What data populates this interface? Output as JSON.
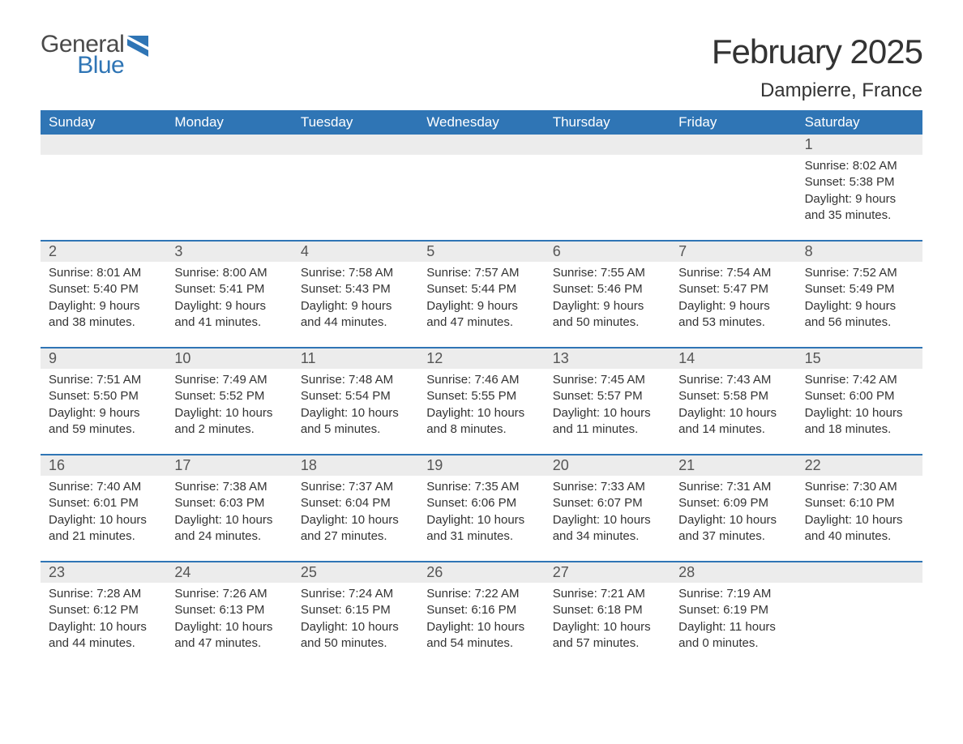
{
  "logo": {
    "text1": "General",
    "text2": "Blue",
    "text_color": "#4a4a4a",
    "blue_color": "#2f75b5"
  },
  "header": {
    "month_title": "February 2025",
    "location": "Dampierre, France"
  },
  "colors": {
    "header_bg": "#2f75b5",
    "header_text": "#ffffff",
    "daynum_bg": "#ececec",
    "text": "#333333",
    "border": "#2f75b5",
    "background": "#ffffff"
  },
  "calendar": {
    "days_of_week": [
      "Sunday",
      "Monday",
      "Tuesday",
      "Wednesday",
      "Thursday",
      "Friday",
      "Saturday"
    ],
    "weeks": [
      [
        {
          "n": "",
          "sunrise": "",
          "sunset": "",
          "daylight1": "",
          "daylight2": ""
        },
        {
          "n": "",
          "sunrise": "",
          "sunset": "",
          "daylight1": "",
          "daylight2": ""
        },
        {
          "n": "",
          "sunrise": "",
          "sunset": "",
          "daylight1": "",
          "daylight2": ""
        },
        {
          "n": "",
          "sunrise": "",
          "sunset": "",
          "daylight1": "",
          "daylight2": ""
        },
        {
          "n": "",
          "sunrise": "",
          "sunset": "",
          "daylight1": "",
          "daylight2": ""
        },
        {
          "n": "",
          "sunrise": "",
          "sunset": "",
          "daylight1": "",
          "daylight2": ""
        },
        {
          "n": "1",
          "sunrise": "Sunrise: 8:02 AM",
          "sunset": "Sunset: 5:38 PM",
          "daylight1": "Daylight: 9 hours",
          "daylight2": "and 35 minutes."
        }
      ],
      [
        {
          "n": "2",
          "sunrise": "Sunrise: 8:01 AM",
          "sunset": "Sunset: 5:40 PM",
          "daylight1": "Daylight: 9 hours",
          "daylight2": "and 38 minutes."
        },
        {
          "n": "3",
          "sunrise": "Sunrise: 8:00 AM",
          "sunset": "Sunset: 5:41 PM",
          "daylight1": "Daylight: 9 hours",
          "daylight2": "and 41 minutes."
        },
        {
          "n": "4",
          "sunrise": "Sunrise: 7:58 AM",
          "sunset": "Sunset: 5:43 PM",
          "daylight1": "Daylight: 9 hours",
          "daylight2": "and 44 minutes."
        },
        {
          "n": "5",
          "sunrise": "Sunrise: 7:57 AM",
          "sunset": "Sunset: 5:44 PM",
          "daylight1": "Daylight: 9 hours",
          "daylight2": "and 47 minutes."
        },
        {
          "n": "6",
          "sunrise": "Sunrise: 7:55 AM",
          "sunset": "Sunset: 5:46 PM",
          "daylight1": "Daylight: 9 hours",
          "daylight2": "and 50 minutes."
        },
        {
          "n": "7",
          "sunrise": "Sunrise: 7:54 AM",
          "sunset": "Sunset: 5:47 PM",
          "daylight1": "Daylight: 9 hours",
          "daylight2": "and 53 minutes."
        },
        {
          "n": "8",
          "sunrise": "Sunrise: 7:52 AM",
          "sunset": "Sunset: 5:49 PM",
          "daylight1": "Daylight: 9 hours",
          "daylight2": "and 56 minutes."
        }
      ],
      [
        {
          "n": "9",
          "sunrise": "Sunrise: 7:51 AM",
          "sunset": "Sunset: 5:50 PM",
          "daylight1": "Daylight: 9 hours",
          "daylight2": "and 59 minutes."
        },
        {
          "n": "10",
          "sunrise": "Sunrise: 7:49 AM",
          "sunset": "Sunset: 5:52 PM",
          "daylight1": "Daylight: 10 hours",
          "daylight2": "and 2 minutes."
        },
        {
          "n": "11",
          "sunrise": "Sunrise: 7:48 AM",
          "sunset": "Sunset: 5:54 PM",
          "daylight1": "Daylight: 10 hours",
          "daylight2": "and 5 minutes."
        },
        {
          "n": "12",
          "sunrise": "Sunrise: 7:46 AM",
          "sunset": "Sunset: 5:55 PM",
          "daylight1": "Daylight: 10 hours",
          "daylight2": "and 8 minutes."
        },
        {
          "n": "13",
          "sunrise": "Sunrise: 7:45 AM",
          "sunset": "Sunset: 5:57 PM",
          "daylight1": "Daylight: 10 hours",
          "daylight2": "and 11 minutes."
        },
        {
          "n": "14",
          "sunrise": "Sunrise: 7:43 AM",
          "sunset": "Sunset: 5:58 PM",
          "daylight1": "Daylight: 10 hours",
          "daylight2": "and 14 minutes."
        },
        {
          "n": "15",
          "sunrise": "Sunrise: 7:42 AM",
          "sunset": "Sunset: 6:00 PM",
          "daylight1": "Daylight: 10 hours",
          "daylight2": "and 18 minutes."
        }
      ],
      [
        {
          "n": "16",
          "sunrise": "Sunrise: 7:40 AM",
          "sunset": "Sunset: 6:01 PM",
          "daylight1": "Daylight: 10 hours",
          "daylight2": "and 21 minutes."
        },
        {
          "n": "17",
          "sunrise": "Sunrise: 7:38 AM",
          "sunset": "Sunset: 6:03 PM",
          "daylight1": "Daylight: 10 hours",
          "daylight2": "and 24 minutes."
        },
        {
          "n": "18",
          "sunrise": "Sunrise: 7:37 AM",
          "sunset": "Sunset: 6:04 PM",
          "daylight1": "Daylight: 10 hours",
          "daylight2": "and 27 minutes."
        },
        {
          "n": "19",
          "sunrise": "Sunrise: 7:35 AM",
          "sunset": "Sunset: 6:06 PM",
          "daylight1": "Daylight: 10 hours",
          "daylight2": "and 31 minutes."
        },
        {
          "n": "20",
          "sunrise": "Sunrise: 7:33 AM",
          "sunset": "Sunset: 6:07 PM",
          "daylight1": "Daylight: 10 hours",
          "daylight2": "and 34 minutes."
        },
        {
          "n": "21",
          "sunrise": "Sunrise: 7:31 AM",
          "sunset": "Sunset: 6:09 PM",
          "daylight1": "Daylight: 10 hours",
          "daylight2": "and 37 minutes."
        },
        {
          "n": "22",
          "sunrise": "Sunrise: 7:30 AM",
          "sunset": "Sunset: 6:10 PM",
          "daylight1": "Daylight: 10 hours",
          "daylight2": "and 40 minutes."
        }
      ],
      [
        {
          "n": "23",
          "sunrise": "Sunrise: 7:28 AM",
          "sunset": "Sunset: 6:12 PM",
          "daylight1": "Daylight: 10 hours",
          "daylight2": "and 44 minutes."
        },
        {
          "n": "24",
          "sunrise": "Sunrise: 7:26 AM",
          "sunset": "Sunset: 6:13 PM",
          "daylight1": "Daylight: 10 hours",
          "daylight2": "and 47 minutes."
        },
        {
          "n": "25",
          "sunrise": "Sunrise: 7:24 AM",
          "sunset": "Sunset: 6:15 PM",
          "daylight1": "Daylight: 10 hours",
          "daylight2": "and 50 minutes."
        },
        {
          "n": "26",
          "sunrise": "Sunrise: 7:22 AM",
          "sunset": "Sunset: 6:16 PM",
          "daylight1": "Daylight: 10 hours",
          "daylight2": "and 54 minutes."
        },
        {
          "n": "27",
          "sunrise": "Sunrise: 7:21 AM",
          "sunset": "Sunset: 6:18 PM",
          "daylight1": "Daylight: 10 hours",
          "daylight2": "and 57 minutes."
        },
        {
          "n": "28",
          "sunrise": "Sunrise: 7:19 AM",
          "sunset": "Sunset: 6:19 PM",
          "daylight1": "Daylight: 11 hours",
          "daylight2": "and 0 minutes."
        },
        {
          "n": "",
          "sunrise": "",
          "sunset": "",
          "daylight1": "",
          "daylight2": ""
        }
      ]
    ]
  }
}
